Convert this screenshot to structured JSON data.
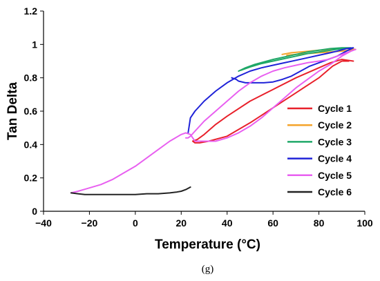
{
  "chart_data": {
    "type": "line",
    "xlabel": "Temperature (°C)",
    "ylabel": "Tan Delta",
    "xlim": [
      -40,
      100
    ],
    "ylim": [
      0,
      1.2
    ],
    "x_ticks": [
      "−40",
      "−20",
      "0",
      "20",
      "40",
      "60",
      "80",
      "100"
    ],
    "y_ticks": [
      "0",
      "0.2",
      "0.4",
      "0.6",
      "0.8",
      "1",
      "1.2"
    ],
    "grid": false,
    "legend_position": "right",
    "caption": "(g)",
    "series": [
      {
        "name": "Cycle 1",
        "color": "#e8202a",
        "x": [
          95,
          90,
          85,
          80,
          70,
          60,
          50,
          40,
          35,
          30,
          27,
          25,
          26,
          28,
          32,
          40,
          50,
          60,
          70,
          80,
          86,
          90,
          93
        ],
        "y": [
          0.9,
          0.91,
          0.89,
          0.86,
          0.8,
          0.73,
          0.66,
          0.57,
          0.52,
          0.46,
          0.43,
          0.42,
          0.41,
          0.41,
          0.42,
          0.45,
          0.53,
          0.62,
          0.71,
          0.8,
          0.87,
          0.9,
          0.9
        ]
      },
      {
        "name": "Cycle 2",
        "color": "#f4a32a",
        "x": [
          64,
          68,
          72,
          76,
          80,
          85,
          90,
          93,
          96,
          93,
          90,
          85,
          80,
          75,
          70,
          66
        ],
        "y": [
          0.94,
          0.95,
          0.955,
          0.96,
          0.965,
          0.97,
          0.975,
          0.975,
          0.97,
          0.965,
          0.96,
          0.955,
          0.95,
          0.945,
          0.94,
          0.935
        ]
      },
      {
        "name": "Cycle 3",
        "color": "#1fa868",
        "x": [
          45,
          48,
          52,
          56,
          60,
          65,
          70,
          75,
          80,
          85,
          90,
          94,
          90,
          85,
          80,
          75,
          70,
          65,
          60,
          55,
          50,
          46
        ],
        "y": [
          0.84,
          0.86,
          0.88,
          0.895,
          0.91,
          0.925,
          0.94,
          0.955,
          0.965,
          0.975,
          0.98,
          0.98,
          0.975,
          0.965,
          0.955,
          0.945,
          0.93,
          0.915,
          0.9,
          0.885,
          0.865,
          0.845
        ]
      },
      {
        "name": "Cycle 4",
        "color": "#1f22d8",
        "x": [
          23,
          24,
          26,
          30,
          35,
          40,
          45,
          50,
          55,
          60,
          65,
          70,
          75,
          80,
          85,
          88,
          92,
          95,
          92,
          88,
          84,
          80,
          76,
          72,
          68,
          64,
          60,
          56,
          52,
          48,
          45,
          44,
          42
        ],
        "y": [
          0.47,
          0.56,
          0.6,
          0.66,
          0.72,
          0.77,
          0.81,
          0.84,
          0.86,
          0.875,
          0.89,
          0.905,
          0.92,
          0.935,
          0.95,
          0.96,
          0.975,
          0.98,
          0.96,
          0.93,
          0.91,
          0.89,
          0.87,
          0.84,
          0.81,
          0.79,
          0.775,
          0.77,
          0.77,
          0.77,
          0.78,
          0.79,
          0.8
        ]
      },
      {
        "name": "Cycle 5",
        "color": "#e85ff0",
        "x": [
          -28,
          -25,
          -20,
          -15,
          -10,
          -5,
          0,
          5,
          10,
          15,
          20,
          22,
          24,
          26,
          30,
          35,
          40,
          45,
          50,
          55,
          60,
          65,
          70,
          75,
          80,
          85,
          90,
          94,
          96,
          92,
          88,
          84,
          80,
          75,
          70,
          65,
          60,
          55,
          50,
          45,
          40,
          35,
          30,
          26,
          24,
          23,
          22
        ],
        "y": [
          0.11,
          0.12,
          0.14,
          0.16,
          0.19,
          0.23,
          0.27,
          0.32,
          0.37,
          0.42,
          0.46,
          0.47,
          0.46,
          0.42,
          0.42,
          0.42,
          0.44,
          0.47,
          0.51,
          0.56,
          0.62,
          0.68,
          0.74,
          0.79,
          0.84,
          0.88,
          0.93,
          0.96,
          0.97,
          0.95,
          0.93,
          0.91,
          0.9,
          0.89,
          0.875,
          0.86,
          0.84,
          0.81,
          0.77,
          0.72,
          0.66,
          0.6,
          0.54,
          0.48,
          0.45,
          0.44,
          0.44
        ]
      },
      {
        "name": "Cycle 6",
        "color": "#222222",
        "x": [
          -28,
          -25,
          -22,
          -20,
          -15,
          -10,
          -5,
          0,
          5,
          10,
          15,
          18,
          20,
          22,
          24
        ],
        "y": [
          0.11,
          0.105,
          0.1,
          0.1,
          0.1,
          0.1,
          0.1,
          0.1,
          0.105,
          0.105,
          0.11,
          0.115,
          0.12,
          0.13,
          0.145
        ]
      }
    ]
  }
}
